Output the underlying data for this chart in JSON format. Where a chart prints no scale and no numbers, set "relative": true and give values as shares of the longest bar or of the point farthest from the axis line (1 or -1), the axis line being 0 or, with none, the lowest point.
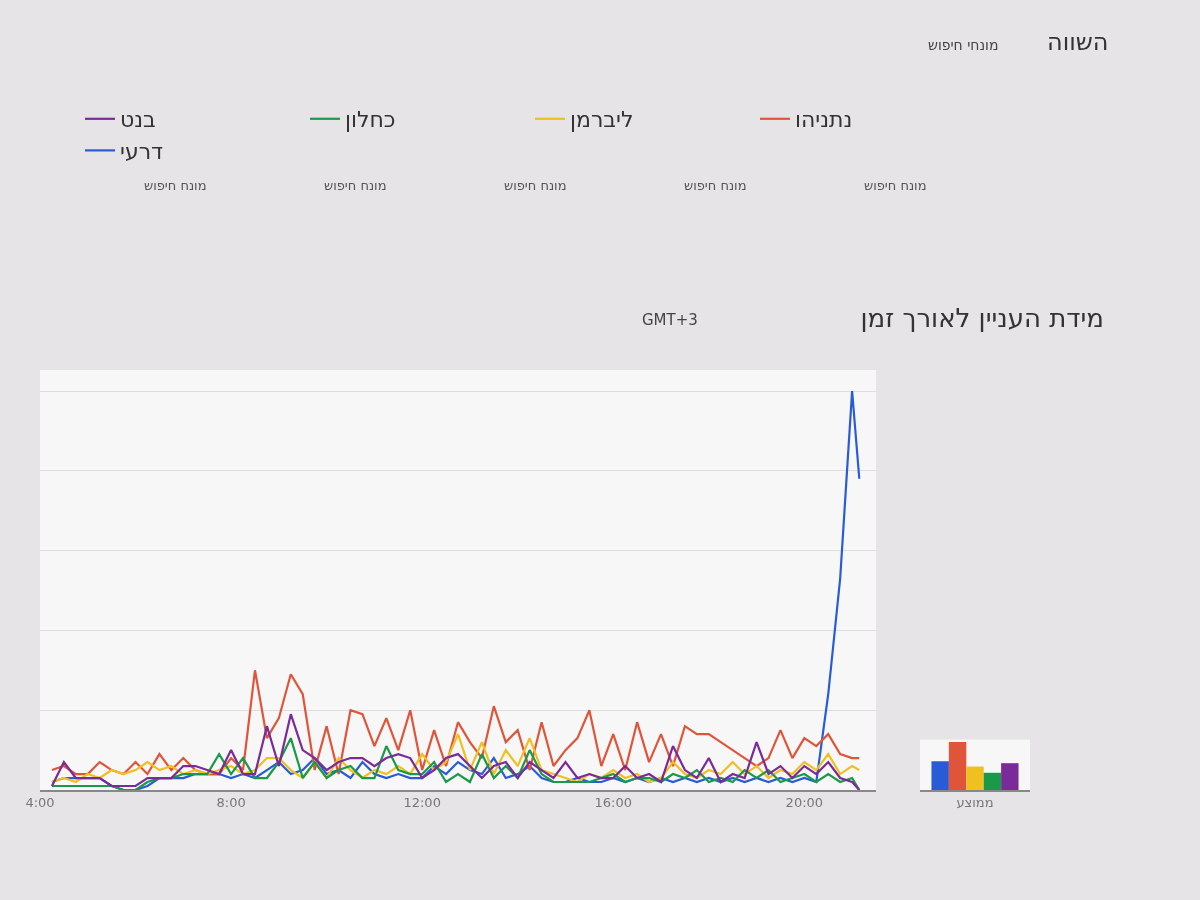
{
  "chart_data": [
    {
      "type": "line",
      "title": "מידת העניין לאורך זמן",
      "subtitle": "GMT+3",
      "annotations": [
        "השווה",
        "מונחי חיפוש",
        "מונח חיפוש",
        "מונח חיפוש",
        "מונח חיפוש",
        "מונח חיפוש",
        "מונח חיפוש"
      ],
      "relative": true,
      "grid": "y",
      "legend": "top",
      "marker": "none",
      "line_style": "solid",
      "xlim": [
        4.0,
        21.5
      ],
      "xticks": [
        {
          "value": 4,
          "label": "4:00"
        },
        {
          "value": 8,
          "label": "8:00"
        },
        {
          "value": 12,
          "label": "12:00"
        },
        {
          "value": 16,
          "label": "16:00"
        },
        {
          "value": 20,
          "label": "20:00"
        }
      ],
      "x": [
        4.25,
        4.5,
        4.75,
        5.0,
        5.25,
        5.5,
        5.75,
        6.0,
        6.25,
        6.5,
        6.75,
        7.0,
        7.25,
        7.5,
        7.75,
        8.0,
        8.25,
        8.5,
        8.75,
        9.0,
        9.25,
        9.5,
        9.75,
        10.0,
        10.25,
        10.5,
        10.75,
        11.0,
        11.25,
        11.5,
        11.75,
        12.0,
        12.25,
        12.5,
        12.75,
        13.0,
        13.25,
        13.5,
        13.75,
        14.0,
        14.25,
        14.5,
        14.75,
        15.0,
        15.25,
        15.5,
        15.75,
        16.0,
        16.25,
        16.5,
        16.75,
        17.0,
        17.25,
        17.5,
        17.75,
        18.0,
        18.25,
        18.5,
        18.75,
        19.0,
        19.25,
        19.5,
        19.75,
        20.0,
        20.25,
        20.5,
        20.75,
        21.0,
        21.15
      ],
      "series": [
        {
          "name": "דרעי",
          "color": "#2a5bd7",
          "values": [
            0.02,
            0.03,
            0.03,
            0.03,
            0.03,
            0.01,
            0,
            0,
            0.01,
            0.03,
            0.03,
            0.03,
            0.04,
            0.04,
            0.04,
            0.03,
            0.04,
            0.03,
            0.05,
            0.07,
            0.04,
            0.05,
            0.08,
            0.04,
            0.05,
            0.03,
            0.07,
            0.04,
            0.03,
            0.04,
            0.03,
            0.03,
            0.06,
            0.04,
            0.07,
            0.05,
            0.04,
            0.08,
            0.03,
            0.04,
            0.06,
            0.03,
            0.02,
            0.02,
            0.03,
            0.02,
            0.02,
            0.03,
            0.02,
            0.03,
            0.02,
            0.03,
            0.02,
            0.03,
            0.02,
            0.03,
            0.02,
            0.03,
            0.02,
            0.03,
            0.02,
            0.03,
            0.02,
            0.03,
            0.02,
            0.24,
            0.53,
            1,
            0.78
          ]
        },
        {
          "name": "נתניהו",
          "color": "#e0553a",
          "values": [
            0.05,
            0.06,
            0.04,
            0.04,
            0.07,
            0.05,
            0.04,
            0.07,
            0.04,
            0.09,
            0.05,
            0.08,
            0.05,
            0.04,
            0.04,
            0.08,
            0.05,
            0.3,
            0.13,
            0.18,
            0.29,
            0.24,
            0.05,
            0.16,
            0.04,
            0.2,
            0.19,
            0.11,
            0.18,
            0.1,
            0.2,
            0.05,
            0.15,
            0.06,
            0.17,
            0.12,
            0.08,
            0.21,
            0.12,
            0.15,
            0.05,
            0.17,
            0.06,
            0.1,
            0.13,
            0.2,
            0.06,
            0.14,
            0.05,
            0.17,
            0.07,
            0.14,
            0.06,
            0.16,
            0.14,
            0.14,
            0.12,
            0.1,
            0.08,
            0.06,
            0.08,
            0.15,
            0.08,
            0.13,
            0.11,
            0.14,
            0.09,
            0.08,
            0.08
          ]
        },
        {
          "name": "ליברמן",
          "color": "#f0c020",
          "values": [
            0.02,
            0.03,
            0.02,
            0.04,
            0.03,
            0.05,
            0.04,
            0.05,
            0.07,
            0.05,
            0.06,
            0.04,
            0.05,
            0.04,
            0.05,
            0.06,
            0.04,
            0.05,
            0.08,
            0.08,
            0.05,
            0.03,
            0.07,
            0.03,
            0.08,
            0.05,
            0.03,
            0.05,
            0.04,
            0.06,
            0.04,
            0.09,
            0.05,
            0.07,
            0.14,
            0.05,
            0.12,
            0.04,
            0.1,
            0.06,
            0.13,
            0.05,
            0.04,
            0.03,
            0.02,
            0.04,
            0.03,
            0.05,
            0.03,
            0.04,
            0.02,
            0.03,
            0.07,
            0.04,
            0.03,
            0.05,
            0.04,
            0.07,
            0.04,
            0.06,
            0.03,
            0.05,
            0.04,
            0.07,
            0.05,
            0.09,
            0.04,
            0.06,
            0.05
          ]
        },
        {
          "name": "כחלון",
          "color": "#1a9a48",
          "values": [
            0.01,
            0.01,
            0.01,
            0.01,
            0.01,
            0.01,
            0,
            0,
            0.02,
            0.03,
            0.03,
            0.04,
            0.04,
            0.04,
            0.09,
            0.04,
            0.08,
            0.03,
            0.03,
            0.07,
            0.13,
            0.03,
            0.07,
            0.03,
            0.05,
            0.06,
            0.03,
            0.03,
            0.11,
            0.05,
            0.04,
            0.04,
            0.07,
            0.02,
            0.04,
            0.02,
            0.09,
            0.03,
            0.06,
            0.03,
            0.1,
            0.04,
            0.02,
            0.02,
            0.02,
            0.02,
            0.03,
            0.04,
            0.02,
            0.03,
            0.03,
            0.02,
            0.04,
            0.03,
            0.05,
            0.02,
            0.03,
            0.02,
            0.05,
            0.03,
            0.05,
            0.02,
            0.03,
            0.04,
            0.02,
            0.04,
            0.02,
            0.03,
            0
          ]
        },
        {
          "name": "בנט",
          "color": "#7b2a9a",
          "values": [
            0.01,
            0.07,
            0.03,
            0.03,
            0.03,
            0.01,
            0.01,
            0.01,
            0.03,
            0.03,
            0.03,
            0.06,
            0.06,
            0.05,
            0.04,
            0.1,
            0.04,
            0.04,
            0.16,
            0.06,
            0.19,
            0.1,
            0.08,
            0.05,
            0.07,
            0.08,
            0.08,
            0.06,
            0.08,
            0.09,
            0.08,
            0.03,
            0.05,
            0.08,
            0.09,
            0.06,
            0.03,
            0.06,
            0.07,
            0.03,
            0.07,
            0.05,
            0.03,
            0.07,
            0.03,
            0.04,
            0.03,
            0.03,
            0.06,
            0.03,
            0.04,
            0.02,
            0.11,
            0.05,
            0.03,
            0.08,
            0.02,
            0.04,
            0.03,
            0.12,
            0.04,
            0.06,
            0.03,
            0.06,
            0.04,
            0.07,
            0.03,
            0.02,
            0
          ]
        }
      ]
    },
    {
      "type": "bar",
      "relative": true,
      "categories": [
        "ממוצע"
      ],
      "series": [
        {
          "color": "#2a5bd7",
          "values": [
            0.6
          ]
        },
        {
          "color": "#e0553a",
          "values": [
            1
          ]
        },
        {
          "color": "#f0c020",
          "values": [
            0.49
          ]
        },
        {
          "color": "#1a9a48",
          "values": [
            0.36
          ]
        },
        {
          "color": "#7b2a9a",
          "values": [
            0.56
          ]
        }
      ]
    }
  ]
}
